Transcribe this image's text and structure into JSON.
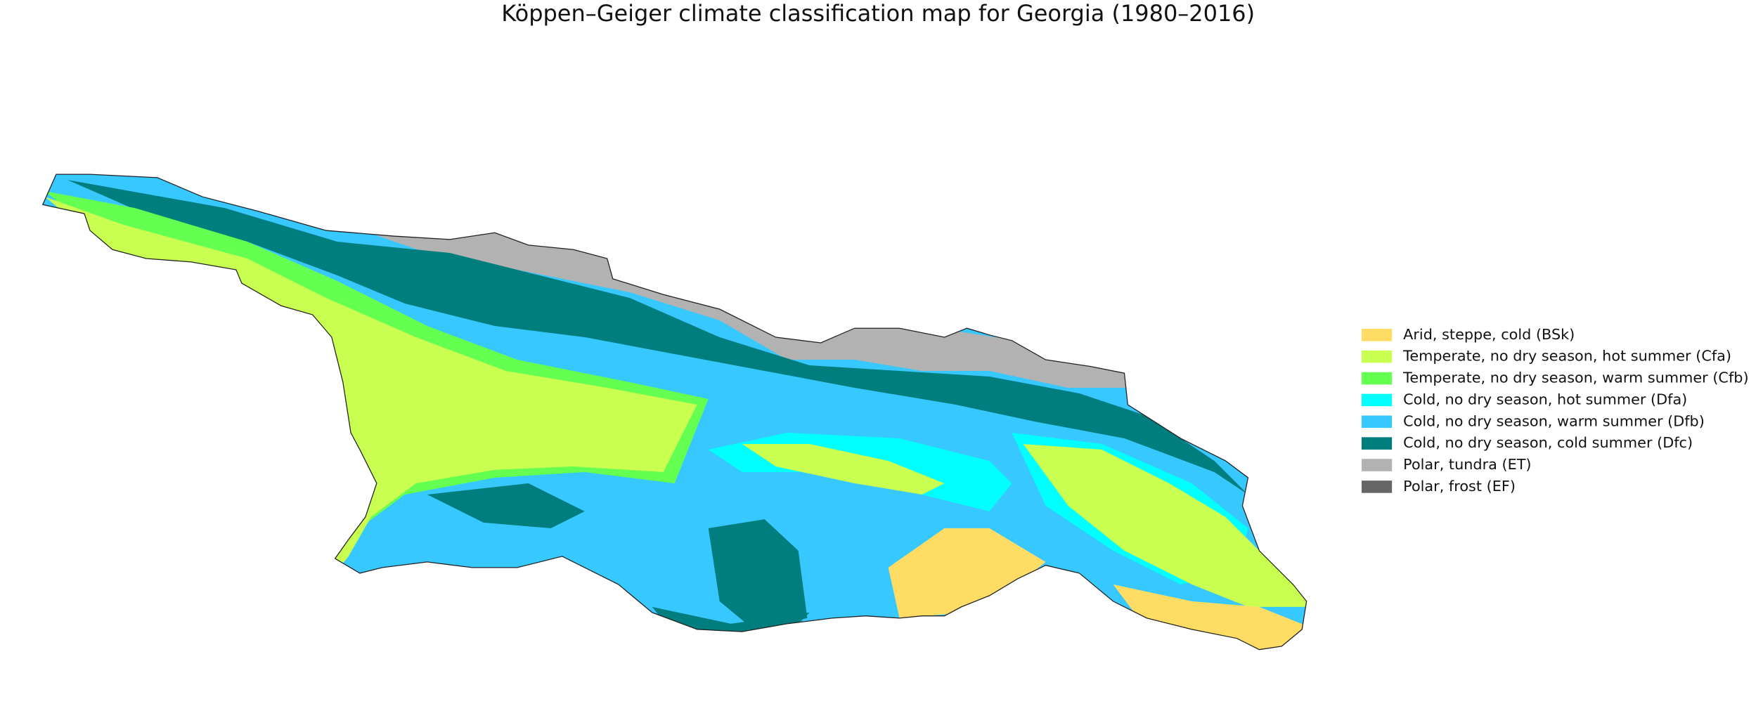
{
  "title": "Köppen–Geiger climate classification map for Georgia (1980–2016)",
  "legend": {
    "items": [
      {
        "label": "Arid, steppe, cold (BSk)",
        "color": "#ffdc64"
      },
      {
        "label": "Temperate, no dry season, hot summer (Cfa)",
        "color": "#c8ff50"
      },
      {
        "label": "Temperate, no dry season, warm summer (Cfb)",
        "color": "#64ff50"
      },
      {
        "label": "Cold, no dry season, hot summer (Dfa)",
        "color": "#00ffff"
      },
      {
        "label": "Cold, no dry season, warm summer (Dfb)",
        "color": "#37c8ff"
      },
      {
        "label": "Cold, no dry season, cold summer (Dfc)",
        "color": "#007d7d"
      },
      {
        "label": "Polar, tundra (ET)",
        "color": "#b2b2b2"
      },
      {
        "label": "Polar, frost (EF)",
        "color": "#666666"
      }
    ]
  }
}
